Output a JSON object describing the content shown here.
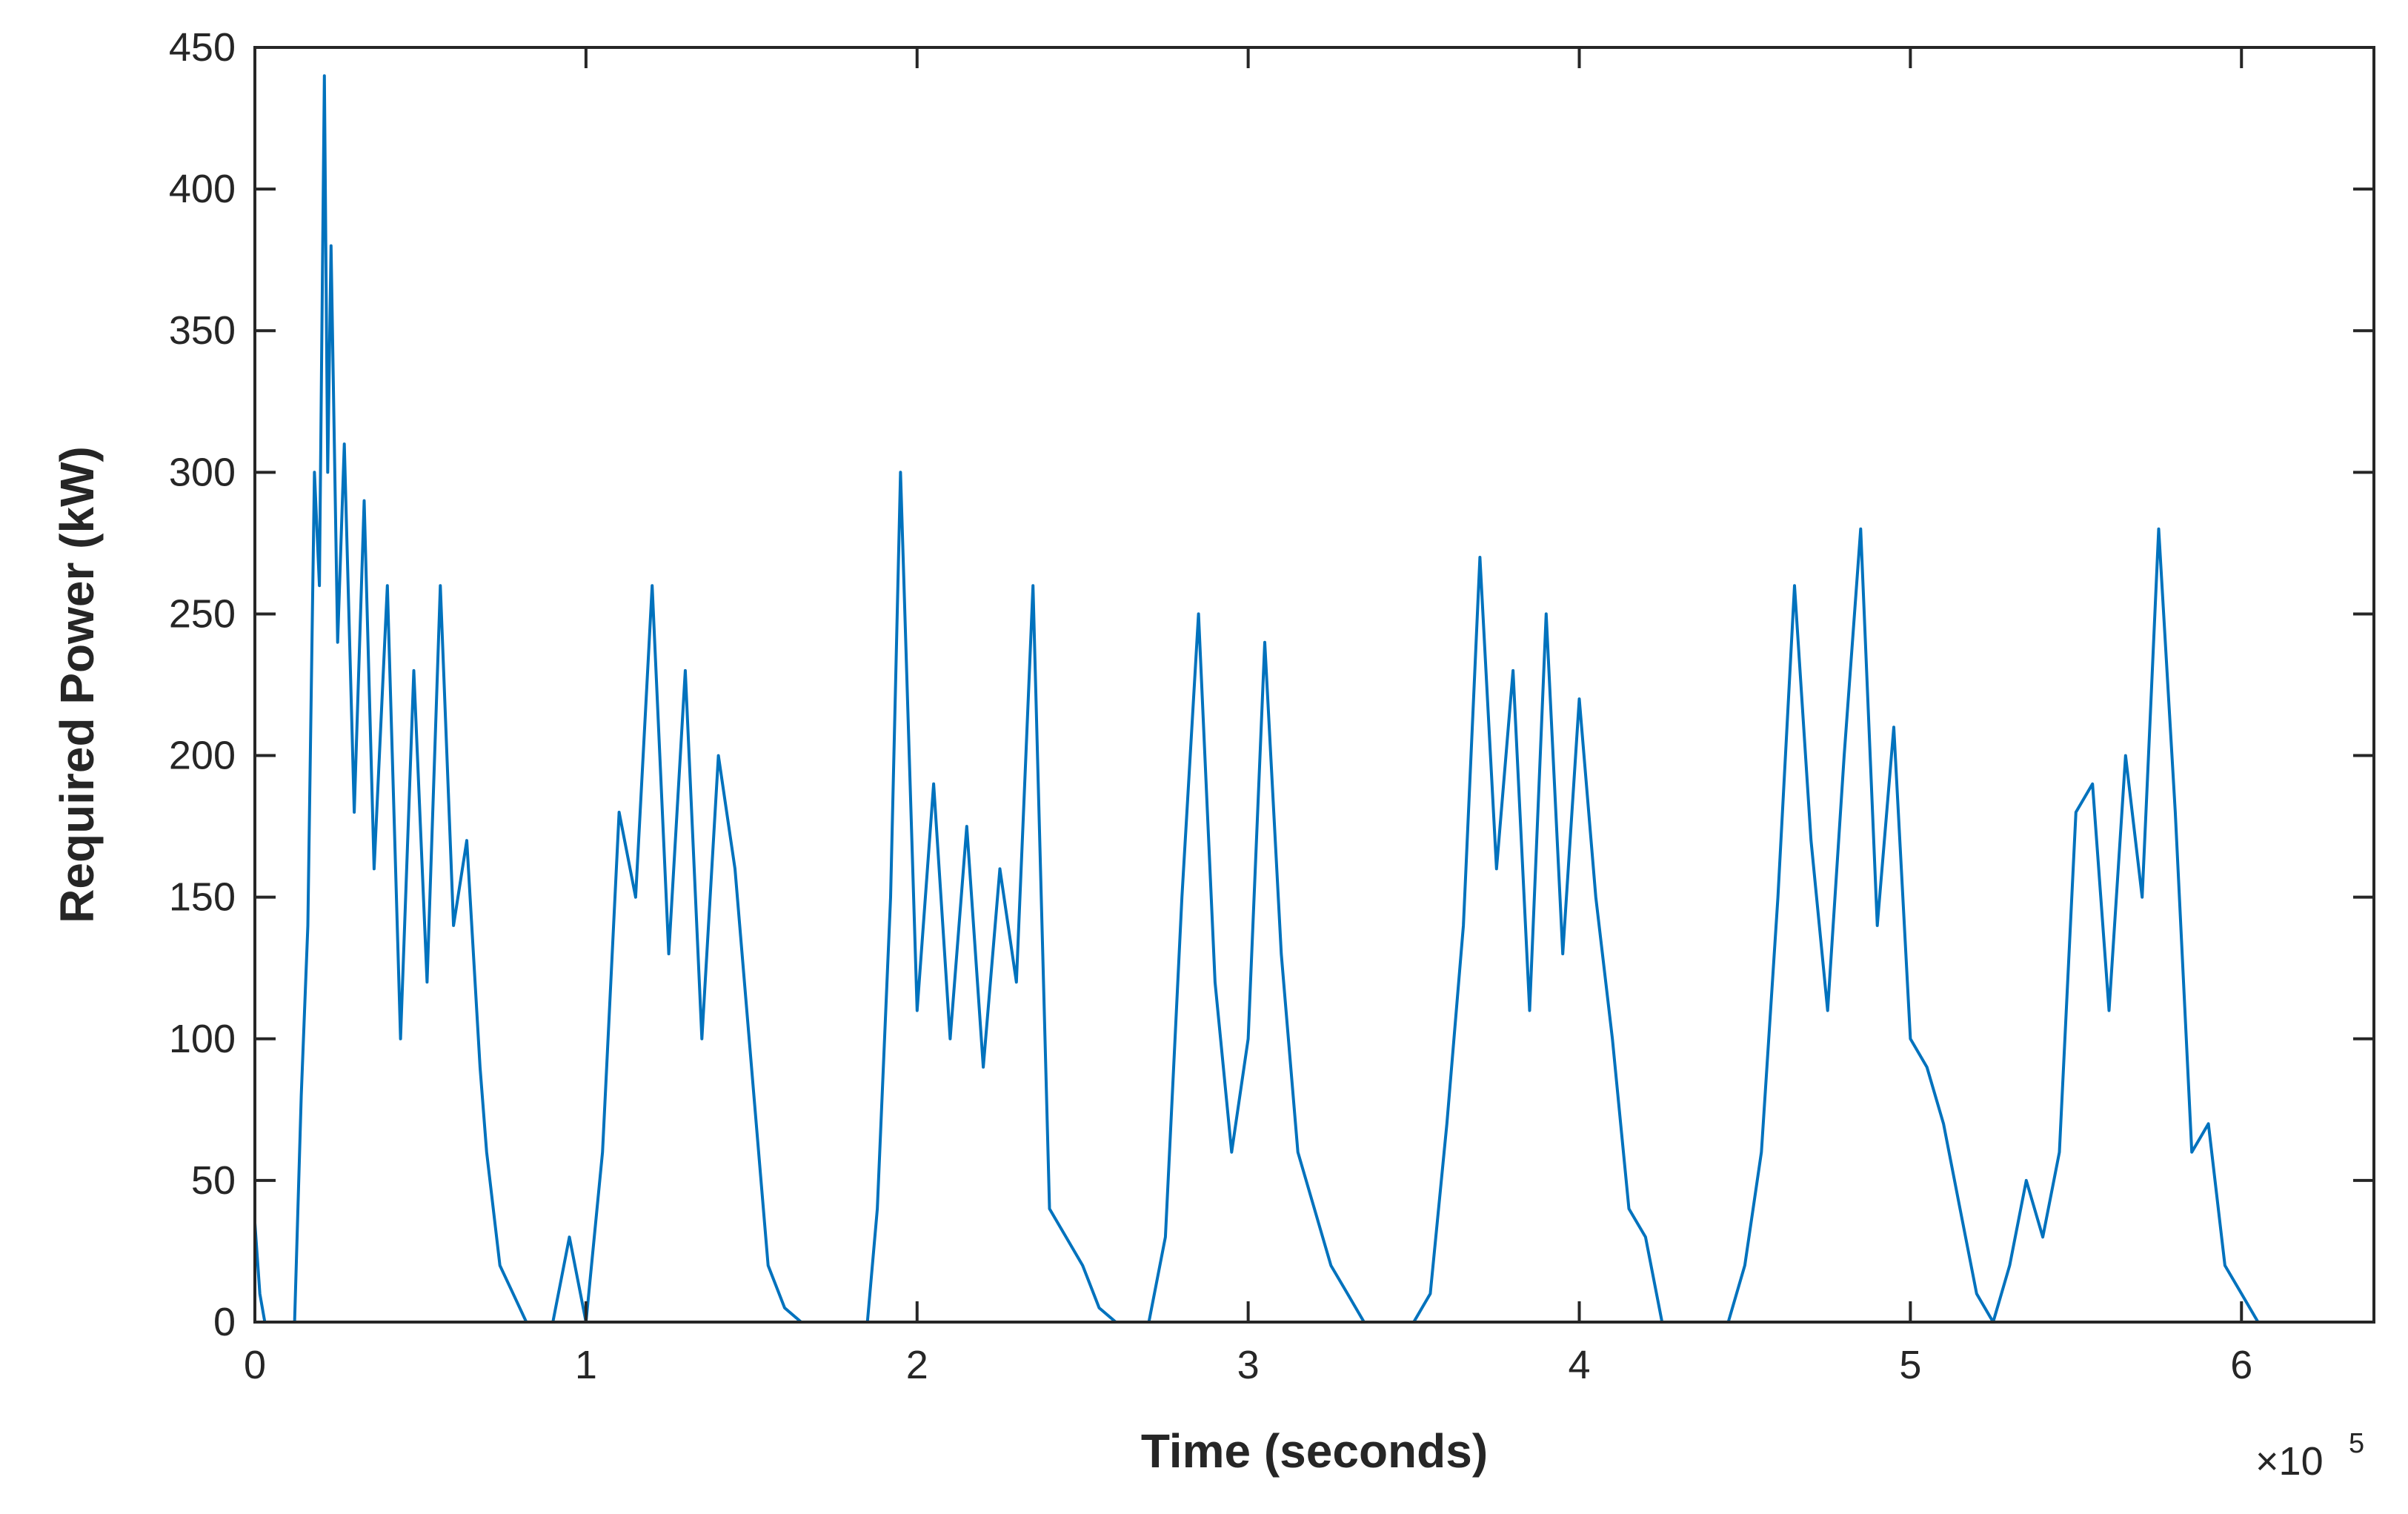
{
  "chart_data": {
    "type": "line",
    "xlabel": "Time (seconds)",
    "ylabel": "Required Power (kW)",
    "x_exponent": {
      "base": "×10",
      "power": "5"
    },
    "xlim": [
      0,
      6.4
    ],
    "ylim": [
      0,
      450
    ],
    "x_ticks": [
      0,
      1,
      2,
      3,
      4,
      5,
      6
    ],
    "y_ticks": [
      0,
      50,
      100,
      150,
      200,
      250,
      300,
      350,
      400,
      450
    ],
    "grid": false,
    "line_color": "#0072BD",
    "series": [
      {
        "x": [
          0.0,
          0.015,
          0.03,
          0.06,
          0.1,
          0.12,
          0.14,
          0.16,
          0.18,
          0.195,
          0.21,
          0.22,
          0.23,
          0.25,
          0.27,
          0.3,
          0.33,
          0.36,
          0.4,
          0.44,
          0.48,
          0.52,
          0.56,
          0.6,
          0.64,
          0.68,
          0.7,
          0.74,
          0.78,
          0.82,
          0.85,
          0.9,
          0.95,
          1.0,
          1.05,
          1.1,
          1.15,
          1.2,
          1.25,
          1.3,
          1.35,
          1.4,
          1.45,
          1.5,
          1.55,
          1.6,
          1.65,
          1.7,
          1.75,
          1.8,
          1.85,
          1.88,
          1.92,
          1.95,
          2.0,
          2.05,
          2.1,
          2.15,
          2.2,
          2.25,
          2.3,
          2.35,
          2.4,
          2.45,
          2.5,
          2.55,
          2.6,
          2.65,
          2.7,
          2.75,
          2.8,
          2.85,
          2.9,
          2.95,
          3.0,
          3.05,
          3.1,
          3.15,
          3.2,
          3.25,
          3.3,
          3.35,
          3.4,
          3.45,
          3.5,
          3.55,
          3.6,
          3.65,
          3.7,
          3.75,
          3.8,
          3.85,
          3.9,
          3.95,
          4.0,
          4.05,
          4.1,
          4.15,
          4.2,
          4.25,
          4.3,
          4.35,
          4.4,
          4.45,
          4.5,
          4.55,
          4.6,
          4.65,
          4.7,
          4.75,
          4.8,
          4.85,
          4.9,
          4.95,
          5.0,
          5.05,
          5.1,
          5.15,
          5.2,
          5.25,
          5.3,
          5.35,
          5.4,
          5.45,
          5.5,
          5.55,
          5.6,
          5.65,
          5.7,
          5.75,
          5.8,
          5.85,
          5.9,
          5.95,
          6.0,
          6.05
        ],
        "y": [
          35,
          10,
          0,
          0,
          0,
          0,
          80,
          140,
          300,
          260,
          440,
          300,
          380,
          240,
          310,
          180,
          290,
          160,
          260,
          100,
          230,
          120,
          260,
          140,
          170,
          90,
          60,
          20,
          10,
          0,
          0,
          0,
          30,
          0,
          60,
          180,
          150,
          260,
          130,
          230,
          100,
          200,
          160,
          90,
          20,
          5,
          0,
          0,
          0,
          0,
          0,
          40,
          150,
          300,
          110,
          190,
          100,
          175,
          90,
          160,
          120,
          260,
          40,
          30,
          20,
          5,
          0,
          0,
          0,
          30,
          150,
          250,
          120,
          60,
          100,
          240,
          130,
          60,
          40,
          20,
          10,
          0,
          0,
          0,
          0,
          10,
          70,
          140,
          270,
          160,
          230,
          110,
          250,
          130,
          220,
          150,
          100,
          40,
          30,
          0,
          0,
          0,
          0,
          0,
          20,
          60,
          150,
          260,
          170,
          110,
          200,
          280,
          140,
          210,
          100,
          90,
          70,
          40,
          10,
          0,
          20,
          50,
          30,
          60,
          180,
          190,
          110,
          200,
          150,
          280,
          180,
          60,
          70,
          20,
          10,
          0
        ]
      }
    ]
  }
}
